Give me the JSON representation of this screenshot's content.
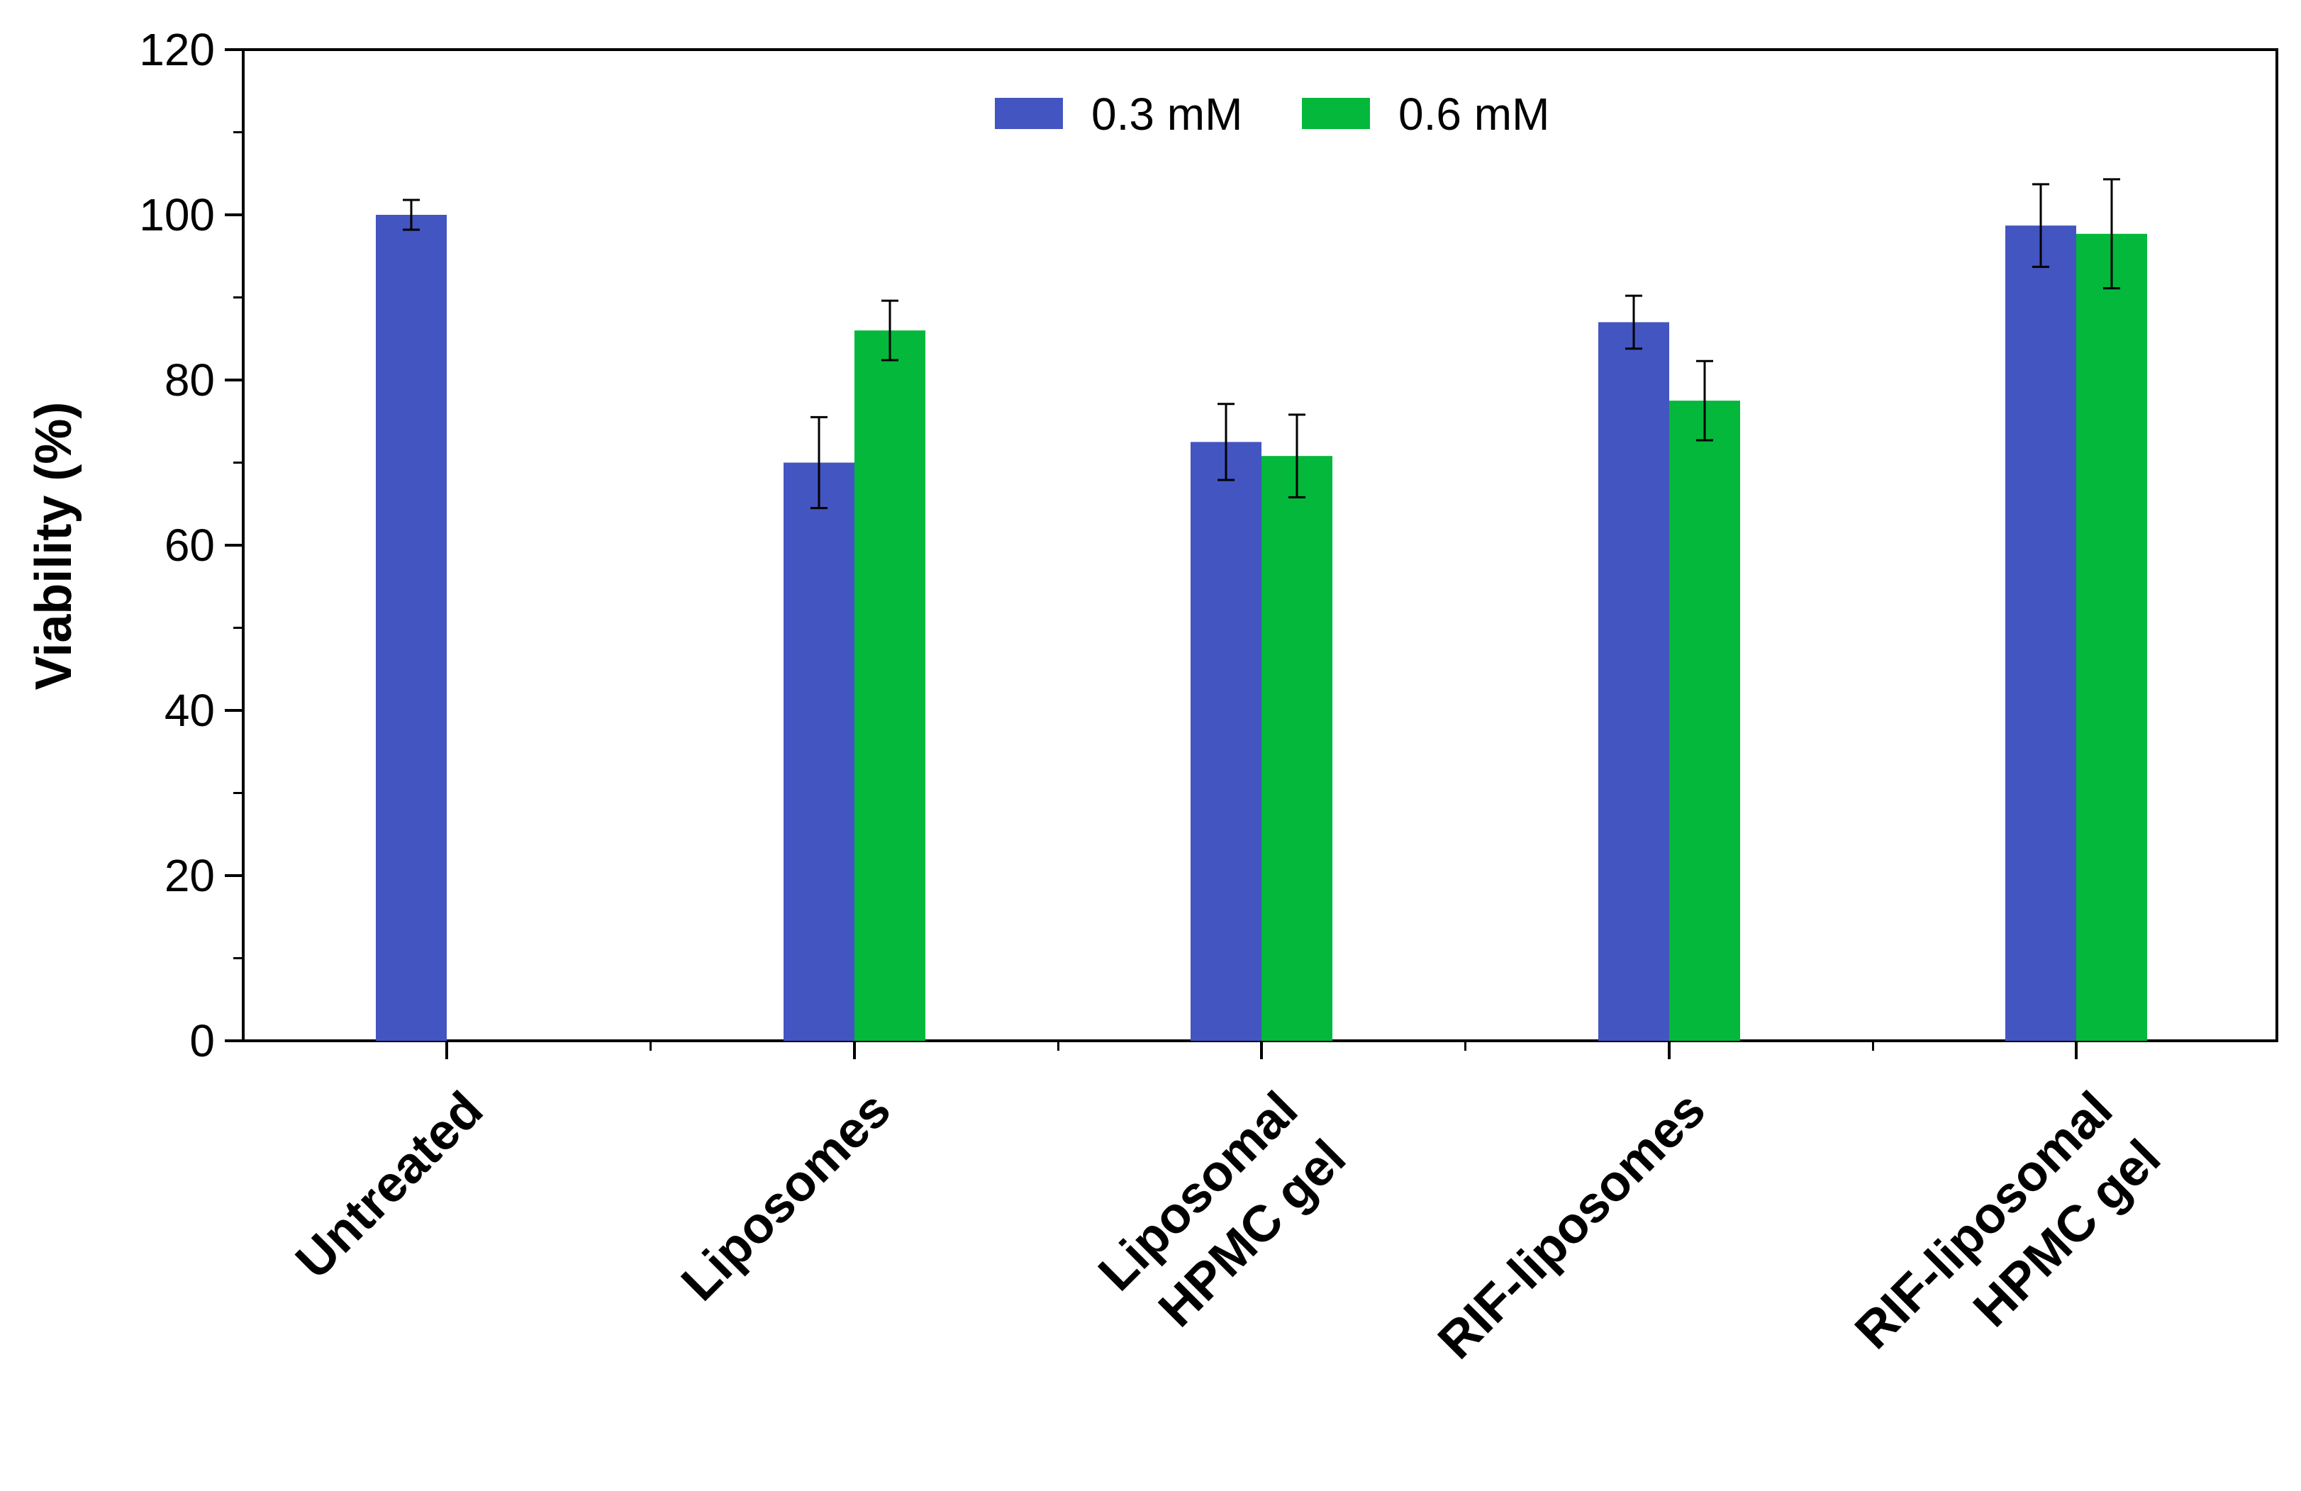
{
  "chart_data": {
    "type": "bar",
    "title": "",
    "xlabel": "",
    "ylabel": "Viability (%)",
    "ylim": [
      0,
      120
    ],
    "yticks": [
      0,
      20,
      40,
      60,
      80,
      100,
      120
    ],
    "grid": false,
    "legend_position": "top-center",
    "categories": [
      [
        "Untreated"
      ],
      [
        "Liposomes"
      ],
      [
        "Liposomal",
        "HPMC gel"
      ],
      [
        "RIF-liposomes"
      ],
      [
        "RIF-liposomal",
        "HPMC gel"
      ]
    ],
    "series": [
      {
        "name": "0.3 mM",
        "color": "#4355c1",
        "values": [
          100,
          70,
          72.5,
          87,
          98.7
        ],
        "errors": [
          1.8,
          5.5,
          4.6,
          3.2,
          5.0
        ]
      },
      {
        "name": "0.6 mM",
        "color": "#03b83b",
        "values": [
          null,
          86,
          70.8,
          77.5,
          97.7
        ],
        "errors": [
          null,
          3.6,
          5.0,
          4.8,
          6.6
        ]
      }
    ]
  }
}
